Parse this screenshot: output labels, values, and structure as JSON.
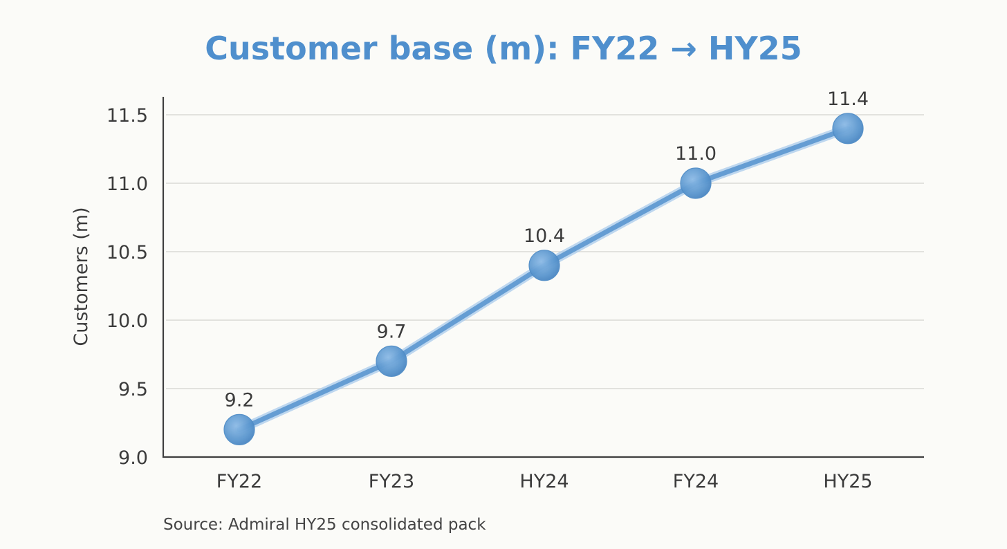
{
  "chart_data": {
    "type": "line",
    "title": "Customer base (m): FY22 → HY25",
    "ylabel": "Customers (m)",
    "xlabel": "",
    "categories": [
      "FY22",
      "FY23",
      "HY24",
      "FY24",
      "HY25"
    ],
    "series": [
      {
        "values": [
          9.2,
          9.7,
          10.4,
          11.0,
          11.4
        ],
        "data_labels": [
          "9.2",
          "9.7",
          "10.4",
          "11.0",
          "11.4"
        ]
      }
    ],
    "ylim": [
      9.0,
      11.6
    ],
    "yticks": [
      9.0,
      9.5,
      10.0,
      10.5,
      11.0,
      11.5
    ],
    "ytick_labels": [
      "9.0",
      "9.5",
      "10.0",
      "10.5",
      "11.0",
      "11.5"
    ],
    "grid": true,
    "legend": "none",
    "colors": {
      "title": "#4f8fcd",
      "line": "#5b97cf",
      "marker": "#5b97cf",
      "axis": "#3f3f3f",
      "grid": "#d9d9d6",
      "background": "#fbfbf8"
    },
    "source": "Source: Admiral HY25 consolidated pack"
  }
}
